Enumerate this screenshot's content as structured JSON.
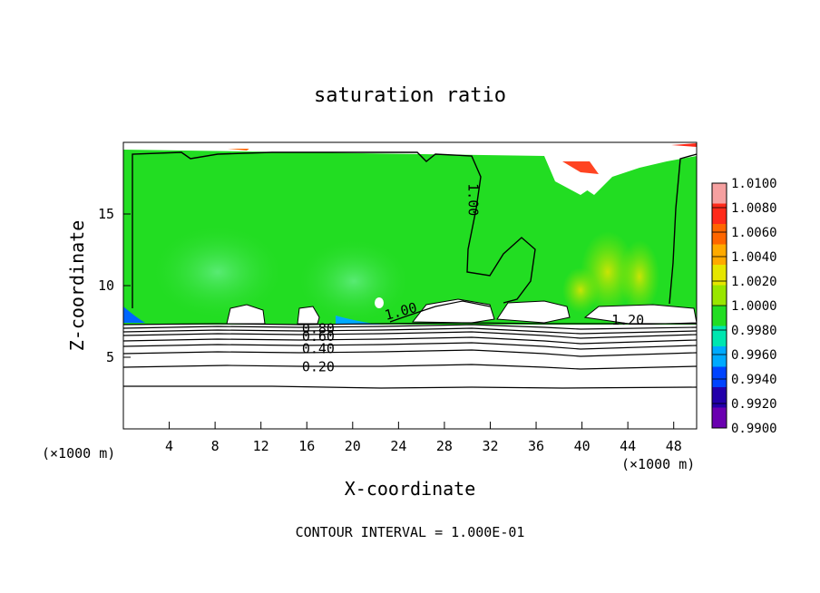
{
  "chart_data": {
    "type": "heatmap",
    "title": "saturation ratio",
    "xlabel": "X-coordinate",
    "ylabel": "Z-coordinate",
    "x_unit_left": "(×1000 m)",
    "x_unit_right": "(×1000 m)",
    "xlim": [
      0,
      50
    ],
    "ylim": [
      0,
      20
    ],
    "x_ticks": [
      4,
      8,
      12,
      16,
      20,
      24,
      28,
      32,
      36,
      40,
      44,
      48
    ],
    "y_ticks": [
      5,
      10,
      15
    ],
    "footer": "CONTOUR INTERVAL = 1.000E-01",
    "colorbar": {
      "levels": [
        "1.0100",
        "1.0080",
        "1.0060",
        "1.0040",
        "1.0020",
        "1.0000",
        "0.9980",
        "0.9960",
        "0.9940",
        "0.9920",
        "0.9900"
      ],
      "colors": [
        "#f5a0a0",
        "#ff2a1a",
        "#ff6600",
        "#ffaa00",
        "#e6e600",
        "#99e600",
        "#22dd22",
        "#00e6b0",
        "#00aaff",
        "#0044ff",
        "#2200aa",
        "#6a00b0"
      ]
    },
    "contour_labels": [
      {
        "text": "1.00",
        "x": 24.2,
        "y": 8.2,
        "rotate": -15
      },
      {
        "text": "1.00",
        "x": 30.5,
        "y": 16.0,
        "rotate": 90
      },
      {
        "text": "1.20",
        "x": 44.0,
        "y": 7.6,
        "rotate": 0
      },
      {
        "text": "0.80",
        "x": 17.0,
        "y": 7.0,
        "rotate": 0
      },
      {
        "text": "0.60",
        "x": 17.0,
        "y": 6.45,
        "rotate": 0
      },
      {
        "text": "0.40",
        "x": 17.0,
        "y": 5.6,
        "rotate": 0
      },
      {
        "text": "0.20",
        "x": 17.0,
        "y": 4.35,
        "rotate": 0
      }
    ],
    "lower_contours": [
      0.2,
      0.4,
      0.6,
      0.8,
      1.0
    ],
    "contour_levels_z": [
      3.0,
      4.4,
      5.4,
      5.8,
      6.1,
      6.4,
      6.65,
      6.9,
      7.1
    ]
  }
}
